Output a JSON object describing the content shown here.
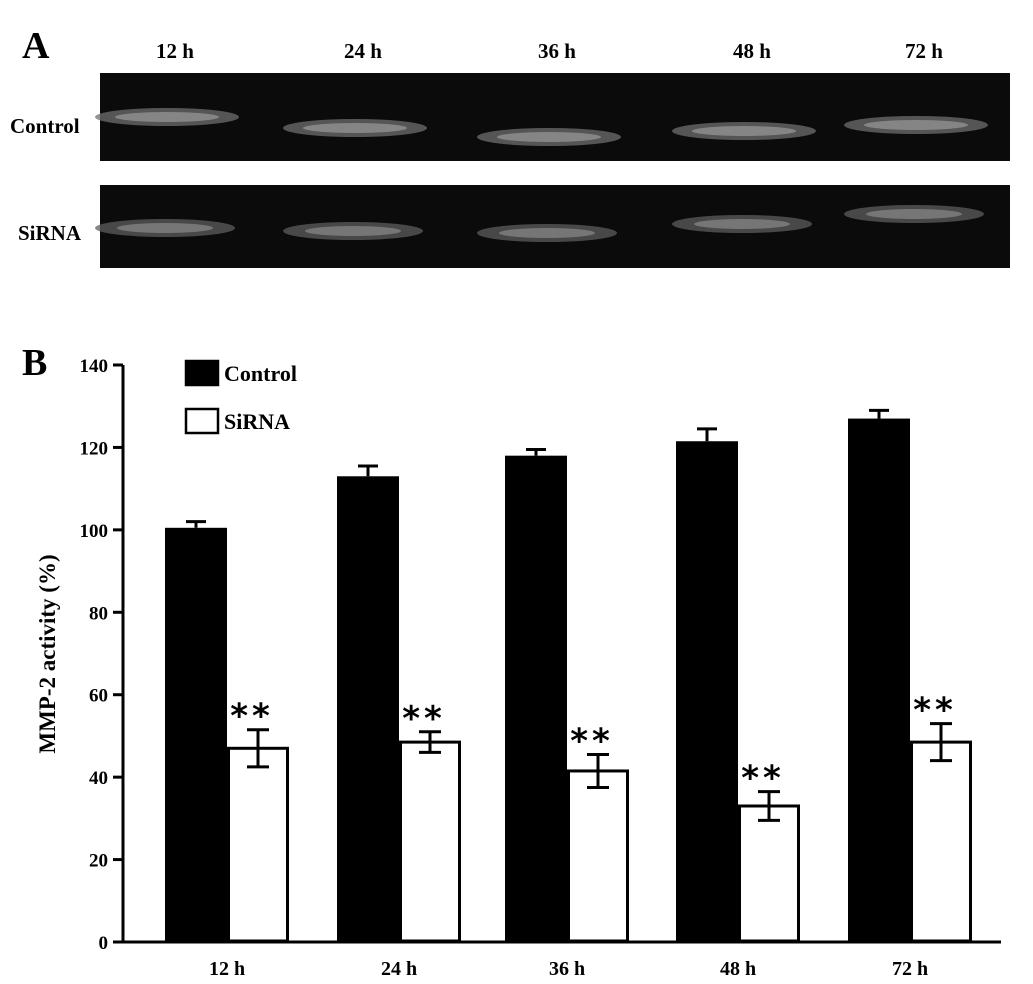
{
  "panel_a": {
    "letter": "A",
    "lanes": [
      "12 h",
      "24 h",
      "36 h",
      "48 h",
      "72 h"
    ],
    "rows": [
      "Control",
      "SiRNA"
    ]
  },
  "panel_b": {
    "letter": "B"
  },
  "chart_data": {
    "type": "bar",
    "title": "",
    "xlabel": "",
    "ylabel": "MMP-2 activity (%)",
    "ylim": [
      0,
      140
    ],
    "yticks": [
      0,
      20,
      40,
      60,
      80,
      100,
      120,
      140
    ],
    "categories": [
      "12 h",
      "24 h",
      "36 h",
      "48 h",
      "72 h"
    ],
    "series": [
      {
        "name": "Control",
        "values": [
          100.5,
          113,
          118,
          121.5,
          127
        ],
        "errors": [
          1.5,
          2.5,
          1.5,
          3,
          2
        ],
        "color": "#000000"
      },
      {
        "name": "SiRNA",
        "values": [
          47,
          48.5,
          41.5,
          33,
          48.5
        ],
        "errors": [
          4.5,
          2.5,
          4,
          3.5,
          4.5
        ],
        "color": "#ffffff"
      }
    ],
    "annotations": [
      "**",
      "**",
      "**",
      "**",
      "**"
    ],
    "legend_position": "top-left",
    "grid": false
  }
}
